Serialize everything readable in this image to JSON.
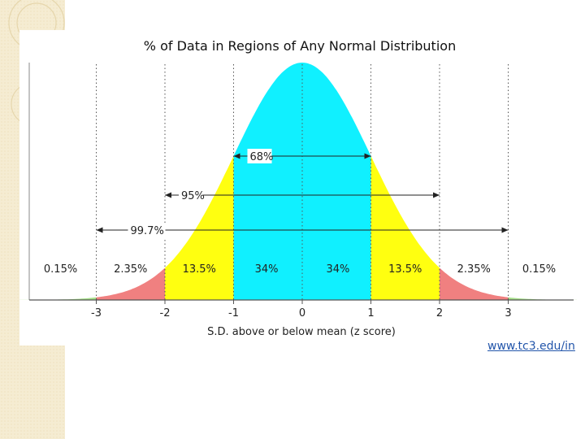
{
  "chart_data": {
    "type": "area",
    "title": "% of Data in Regions of Any Normal Distribution",
    "xlabel": "S.D. above or below mean (z score)",
    "ylabel": "",
    "x_ticks": [
      "-3",
      "-2",
      "-1",
      "0",
      "1",
      "2",
      "3"
    ],
    "xlim": [
      -4.2,
      4.0
    ],
    "regions": [
      {
        "from": -4.2,
        "to": -3,
        "percent_label": "0.15%",
        "color": "#a6e08a"
      },
      {
        "from": -3,
        "to": -2,
        "percent_label": "2.35%",
        "color": "#f08080"
      },
      {
        "from": -2,
        "to": -1,
        "percent_label": "13.5%",
        "color": "#ffff10"
      },
      {
        "from": -1,
        "to": 0,
        "percent_label": "34%",
        "color": "#10f0ff"
      },
      {
        "from": 0,
        "to": 1,
        "percent_label": "34%",
        "color": "#10f0ff"
      },
      {
        "from": 1,
        "to": 2,
        "percent_label": "13.5%",
        "color": "#ffff10"
      },
      {
        "from": 2,
        "to": 3,
        "percent_label": "2.35%",
        "color": "#f08080"
      },
      {
        "from": 3,
        "to": 4.0,
        "percent_label": "0.15%",
        "color": "#a6e08a"
      }
    ],
    "ranges": [
      {
        "from": -1,
        "to": 1,
        "label": "68%"
      },
      {
        "from": -2,
        "to": 2,
        "label": "95%"
      },
      {
        "from": -3,
        "to": 3,
        "label": "99.7%"
      }
    ]
  },
  "source_link": "www.tc3.edu/in",
  "colors": {
    "sidebar": "#f5ecd2",
    "axis": "#555555",
    "grid": "#555555"
  }
}
